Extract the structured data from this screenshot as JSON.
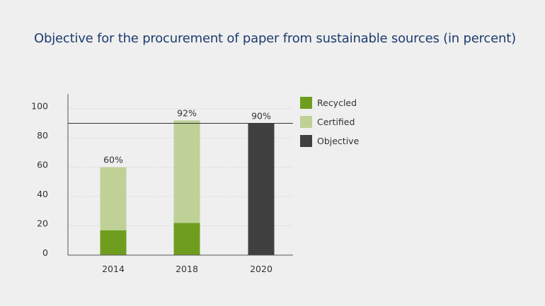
{
  "chart_data": {
    "type": "bar",
    "stacked": true,
    "title": "Objective for the procurement of paper from sustainable sources (in percent)",
    "categories": [
      "2014",
      "2018",
      "2020"
    ],
    "series": [
      {
        "name": "Recycled",
        "color": "#6f9e1f",
        "values": [
          17,
          22,
          0
        ]
      },
      {
        "name": "Certified",
        "color": "#bfd197",
        "values": [
          43,
          70,
          0
        ]
      },
      {
        "name": "Objective",
        "color": "#404040",
        "values": [
          0,
          0,
          90
        ]
      }
    ],
    "totals_labels": [
      "60%",
      "92%",
      "90%"
    ],
    "totals": [
      60,
      92,
      90
    ],
    "objective_line": 90,
    "ylim": [
      0,
      110
    ],
    "yticks": [
      0,
      20,
      40,
      60,
      80,
      100
    ],
    "xlabel": "",
    "ylabel": "",
    "grid": true,
    "legend_position": "right"
  }
}
